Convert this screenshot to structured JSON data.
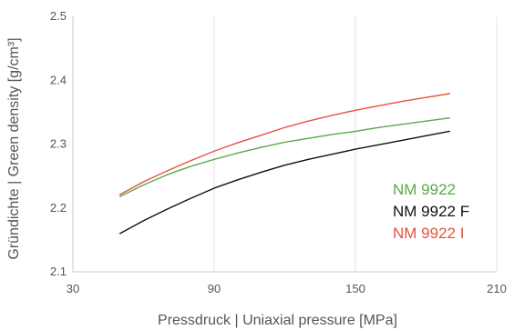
{
  "chart_data": {
    "type": "line",
    "xlabel": "Pressdruck | Uniaxial pressure [MPa]",
    "ylabel": "Gründichte | Green density [g/cm³]",
    "xlim": [
      30,
      210
    ],
    "ylim": [
      2.1,
      2.5
    ],
    "xticks": [
      "30",
      "90",
      "150",
      "210"
    ],
    "yticks": [
      "2.1",
      "2.2",
      "2.3",
      "2.4",
      "2.5"
    ],
    "grid": "vertical",
    "legend_position": "right-lower",
    "series": [
      {
        "name": "NM 9922",
        "color": "#5aa84a",
        "x": [
          50,
          60,
          70,
          80,
          90,
          100,
          110,
          120,
          130,
          140,
          150,
          160,
          170,
          180,
          190
        ],
        "y": [
          2.218,
          2.236,
          2.252,
          2.265,
          2.276,
          2.286,
          2.295,
          2.303,
          2.309,
          2.315,
          2.32,
          2.326,
          2.331,
          2.336,
          2.341
        ]
      },
      {
        "name": "NM 9922 F",
        "color": "#111111",
        "x": [
          50,
          60,
          70,
          80,
          90,
          100,
          110,
          120,
          130,
          140,
          150,
          160,
          170,
          180,
          190
        ],
        "y": [
          2.16,
          2.18,
          2.198,
          2.215,
          2.231,
          2.244,
          2.256,
          2.267,
          2.276,
          2.284,
          2.292,
          2.299,
          2.306,
          2.313,
          2.32
        ]
      },
      {
        "name": "NM 9922 I",
        "color": "#e5533d",
        "x": [
          50,
          60,
          70,
          80,
          90,
          100,
          110,
          120,
          130,
          140,
          150,
          160,
          170,
          180,
          190
        ],
        "y": [
          2.221,
          2.241,
          2.258,
          2.274,
          2.289,
          2.302,
          2.314,
          2.326,
          2.336,
          2.345,
          2.353,
          2.36,
          2.367,
          2.373,
          2.379
        ]
      }
    ]
  }
}
